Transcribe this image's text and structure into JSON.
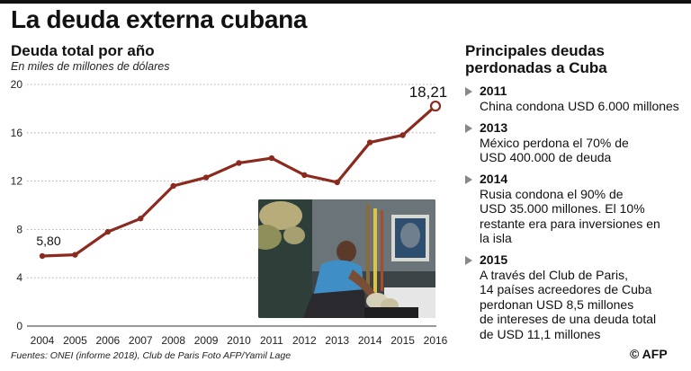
{
  "header": {
    "title": "La deuda externa cubana"
  },
  "chart_data": {
    "type": "line",
    "title": "Deuda total por año",
    "subtitle": "En miles de millones de dólares",
    "x": [
      2004,
      2005,
      2006,
      2007,
      2008,
      2009,
      2010,
      2011,
      2012,
      2013,
      2014,
      2015,
      2016
    ],
    "series": [
      {
        "values": [
          5.8,
          5.9,
          7.8,
          8.9,
          11.6,
          12.3,
          13.5,
          13.9,
          12.5,
          11.9,
          15.2,
          15.8,
          18.21
        ],
        "color": "#8b2a1e"
      }
    ],
    "ylim": [
      0,
      20
    ],
    "yticks": [
      0,
      4,
      8,
      12,
      16,
      20
    ],
    "grid": "horizontal-dotted",
    "data_labels": [
      {
        "index": 0,
        "text": "5,80"
      },
      {
        "index": 12,
        "text": "18,21"
      }
    ]
  },
  "debts": {
    "title": "Principales deudas perdonadas a Cuba",
    "items": [
      {
        "year": "2011",
        "text": "China condona USD 6.000 millones"
      },
      {
        "year": "2013",
        "text": "México perdona el 70% de\nUSD 400.000 de deuda"
      },
      {
        "year": "2014",
        "text": "Rusia condona el 90% de\nUSD 35.000 millones. El 10%\nrestante era para inversiones en\nla isla"
      },
      {
        "year": "2015",
        "text": "A través del Club de Paris,\n14 países acreedores de Cuba\nperdonan USD 8,5 millones\nde intereses de una deuda total\nde USD 11,1 millones"
      }
    ]
  },
  "footer": {
    "credits": "Fuentes: ONEI (informe 2018), Club de Paris  Foto AFP/Yamil Lage",
    "logo": "© AFP"
  },
  "colors": {
    "line": "#8b2a1e",
    "grid": "#9a9a9a",
    "arrow": "#888888"
  }
}
